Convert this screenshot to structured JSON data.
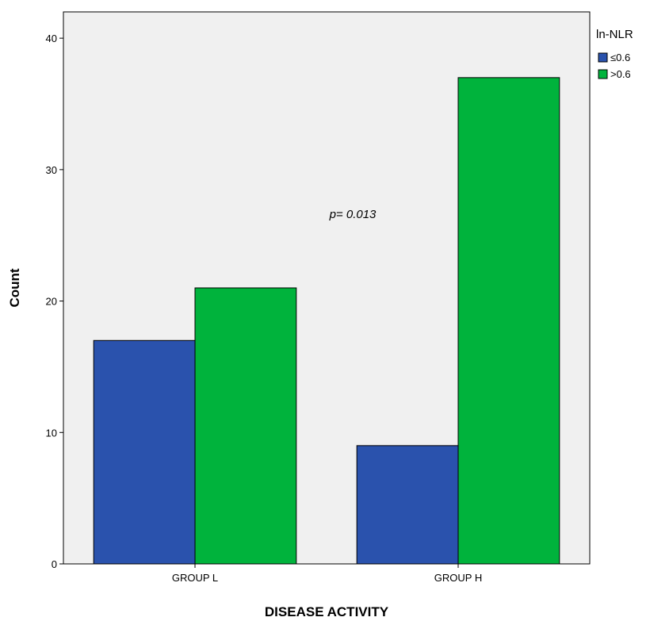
{
  "chart_data": {
    "type": "bar",
    "categories": [
      "GROUP L",
      "GROUP H"
    ],
    "series": [
      {
        "name": "≤0.6",
        "values": [
          17,
          9
        ],
        "color": "#2a52ad"
      },
      {
        "name": ">0.6",
        "values": [
          21,
          37
        ],
        "color": "#00b33c"
      }
    ],
    "xlabel": "DISEASE ACTIVITY",
    "ylabel": "Count",
    "ylim": [
      0,
      40
    ],
    "yticks": [
      0,
      10,
      20,
      30,
      40
    ],
    "legend": {
      "title": "ln-NLR",
      "position": "top-right-outside"
    },
    "annotation": "p= 0.013",
    "grid": false,
    "plot_background": "#f0f0f0"
  }
}
